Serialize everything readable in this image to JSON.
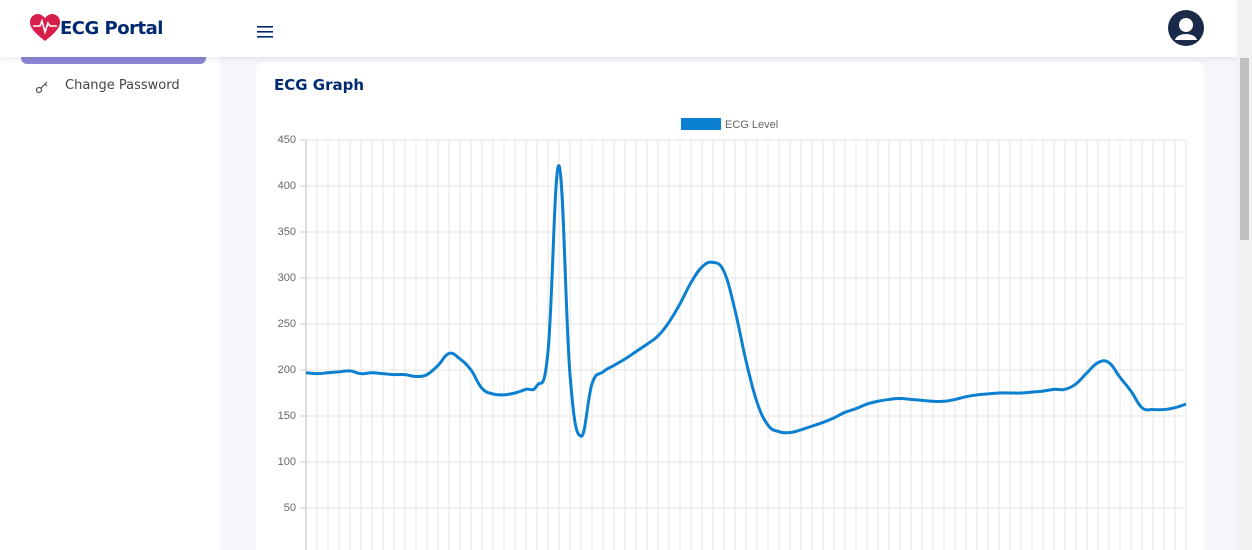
{
  "header": {
    "brand": "ECG Portal"
  },
  "sidebar": {
    "items": [
      "Change Password"
    ]
  },
  "chart_data": {
    "type": "line",
    "title": "ECG Graph",
    "series": [
      {
        "name": "ECG Level",
        "color": "#0b7fd0",
        "values": [
          197,
          196,
          197,
          198,
          199,
          196,
          197,
          196,
          195,
          195,
          193,
          195,
          205,
          218,
          212,
          200,
          180,
          174,
          173,
          175,
          179,
          183,
          220,
          422,
          195,
          128,
          185,
          198,
          205,
          212,
          220,
          228,
          237,
          252,
          272,
          295,
          312,
          317,
          307,
          265,
          210,
          165,
          140,
          133,
          132,
          135,
          139,
          143,
          148,
          154,
          158,
          163,
          166,
          168,
          169,
          168,
          167,
          166,
          166,
          168,
          171,
          173,
          174,
          175,
          175,
          175,
          176,
          177,
          179,
          179,
          185,
          197,
          208,
          208,
          192,
          177,
          159,
          157,
          157,
          159,
          163
        ]
      }
    ],
    "ylim": [
      0,
      450
    ],
    "yticks": [
      50,
      100,
      150,
      200,
      250,
      300,
      350,
      400,
      450
    ],
    "grid": true
  }
}
